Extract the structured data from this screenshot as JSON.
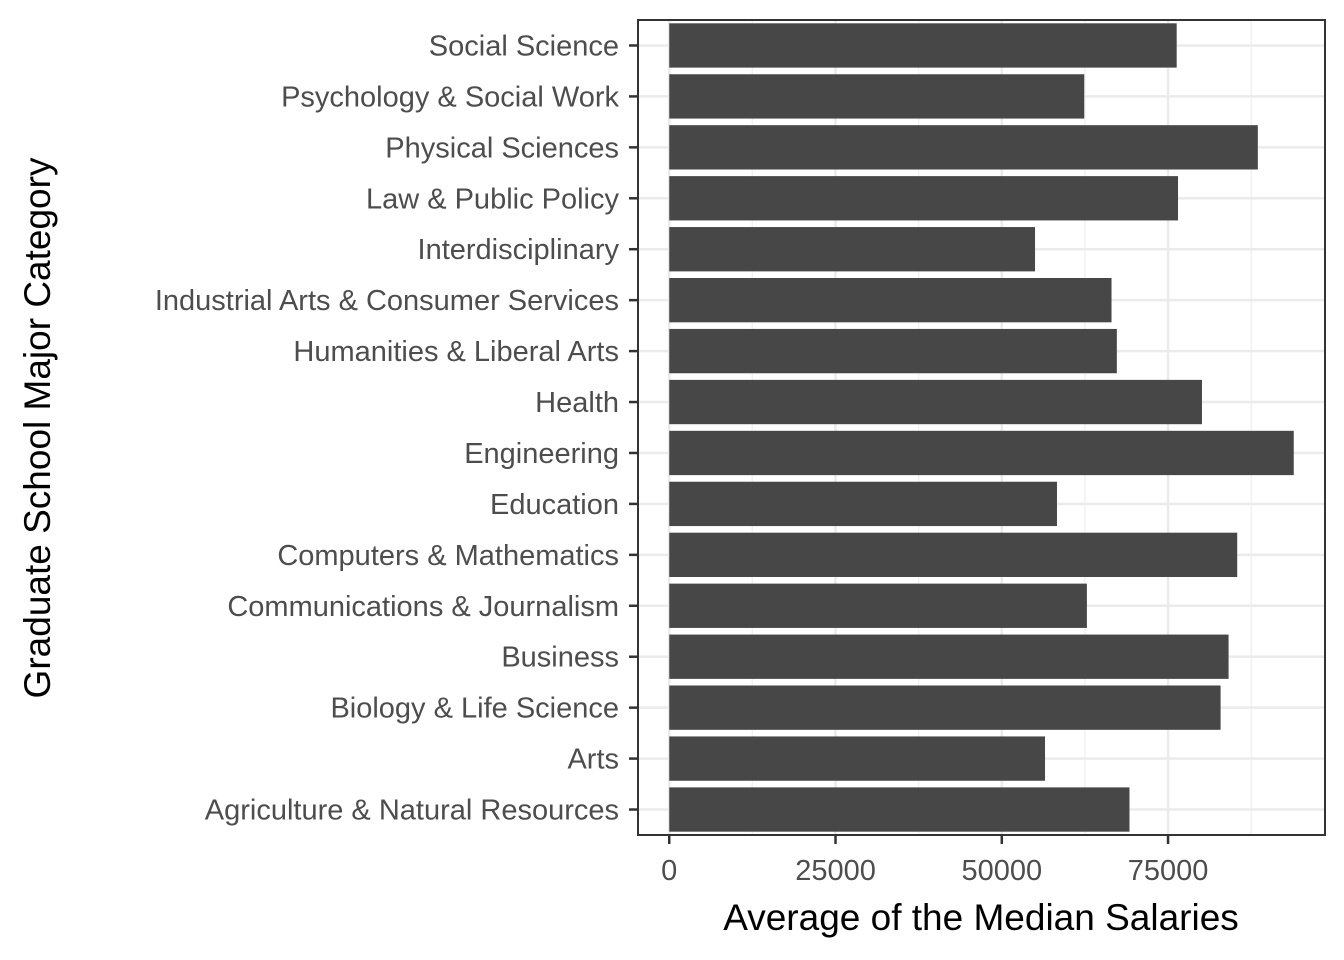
{
  "chart_data": {
    "type": "bar",
    "orientation": "horizontal",
    "title": "",
    "xlabel": "Average of the Median Salaries",
    "ylabel": "Graduate School Major Category",
    "categories": [
      "Agriculture & Natural Resources",
      "Arts",
      "Biology & Life Science",
      "Business",
      "Communications & Journalism",
      "Computers & Mathematics",
      "Education",
      "Engineering",
      "Health",
      "Humanities & Liberal Arts",
      "Industrial Arts & Consumer Services",
      "Interdisciplinary",
      "Law & Public Policy",
      "Physical Sciences",
      "Psychology & Social Work",
      "Social Science"
    ],
    "values": [
      69200,
      56500,
      82900,
      84100,
      62800,
      85400,
      58300,
      93900,
      80100,
      67300,
      66500,
      55000,
      76500,
      88500,
      62400,
      76300
    ],
    "xlim": [
      -4700,
      98600
    ],
    "xticks": [
      0,
      25000,
      50000,
      75000
    ],
    "xtick_labels": [
      "0",
      "25000",
      "50000",
      "75000"
    ],
    "bar_color": "#474747",
    "grid": true,
    "legend": "none"
  }
}
